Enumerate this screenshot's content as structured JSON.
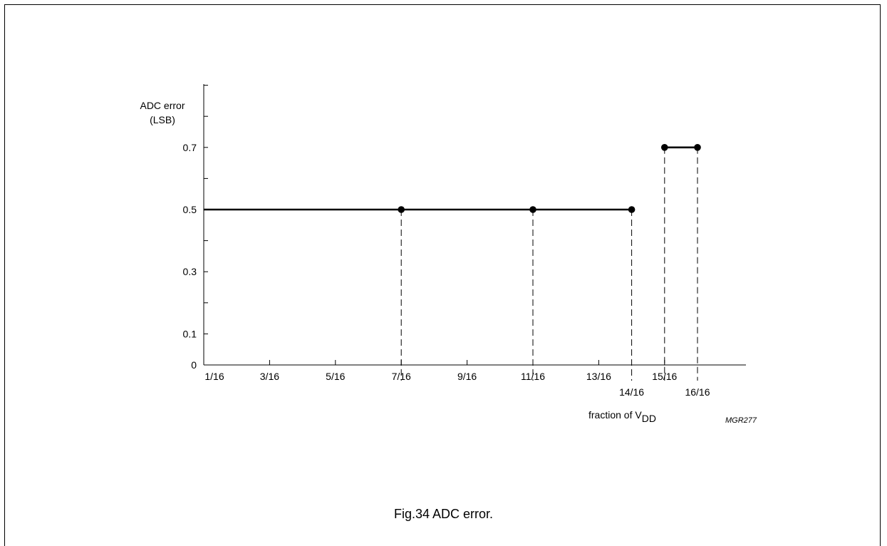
{
  "figure": {
    "caption": "Fig.34  ADC error.",
    "code": "MGR277"
  },
  "chart_data": {
    "type": "line",
    "ylabel_line1": "ADC error",
    "ylabel_line2": "(LSB)",
    "xlabel_main": "fraction of V",
    "xlabel_sub": "DD",
    "ylim": [
      0,
      0.9
    ],
    "xlim": [
      1,
      18
    ],
    "yticks": [
      0,
      0.1,
      0.2,
      0.3,
      0.4,
      0.5,
      0.6,
      0.7,
      0.8,
      0.9
    ],
    "ytick_labels": [
      {
        "value": 0,
        "label": "0"
      },
      {
        "value": 0.1,
        "label": "0.1"
      },
      {
        "value": 0.3,
        "label": "0.3"
      },
      {
        "value": 0.5,
        "label": "0.5"
      },
      {
        "value": 0.7,
        "label": "0.7"
      }
    ],
    "xticks": [
      3,
      5,
      7,
      9,
      11,
      13,
      15
    ],
    "xtick_labels": [
      {
        "value": 1,
        "label": "1/16",
        "row": 1
      },
      {
        "value": 3,
        "label": "3/16",
        "row": 1
      },
      {
        "value": 5,
        "label": "5/16",
        "row": 1
      },
      {
        "value": 7,
        "label": "7/16",
        "row": 1
      },
      {
        "value": 9,
        "label": "9/16",
        "row": 1
      },
      {
        "value": 11,
        "label": "11/16",
        "row": 1
      },
      {
        "value": 13,
        "label": "13/16",
        "row": 1
      },
      {
        "value": 15,
        "label": "15/16",
        "row": 1
      },
      {
        "value": 14,
        "label": "14/16",
        "row": 2
      },
      {
        "value": 16,
        "label": "16/16",
        "row": 2
      }
    ],
    "segments": [
      {
        "x1": 1,
        "x2": 14,
        "y": 0.5
      },
      {
        "x1": 15,
        "x2": 16,
        "y": 0.7
      }
    ],
    "points": [
      {
        "x": 7,
        "y": 0.5
      },
      {
        "x": 11,
        "y": 0.5
      },
      {
        "x": 14,
        "y": 0.5
      },
      {
        "x": 15,
        "y": 0.7
      },
      {
        "x": 16,
        "y": 0.7
      }
    ],
    "grid": false
  }
}
